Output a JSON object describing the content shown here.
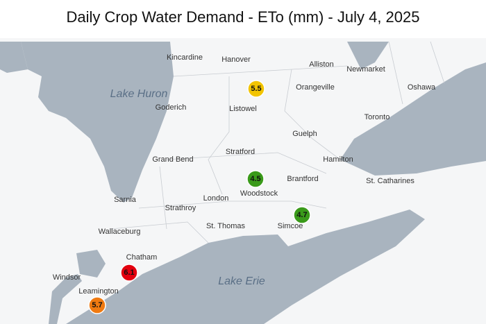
{
  "title": "Daily Crop Water Demand - ETo (mm) - July 4, 2025",
  "lakes": [
    "Lake Huron",
    "Lake Erie"
  ],
  "cities": [
    "Kincardine",
    "Hanover",
    "Alliston",
    "Newmarket",
    "Orangeville",
    "Oshawa",
    "Goderich",
    "Listowel",
    "Toronto",
    "Guelph",
    "Stratford",
    "Grand Bend",
    "Hamilton",
    "Brantford",
    "St. Catharines",
    "Woodstock",
    "Sarnia",
    "London",
    "Strathroy",
    "Simcoe",
    "Wallaceburg",
    "St. Thomas",
    "Chatham",
    "Windsor",
    "Leamington"
  ],
  "stations": [
    {
      "value": 5.5,
      "color": "#f2c400"
    },
    {
      "value": 4.5,
      "color": "#3a9a1a"
    },
    {
      "value": 4.7,
      "color": "#3a9a1a"
    },
    {
      "value": 6.1,
      "color": "#e3000f"
    },
    {
      "value": 5.7,
      "color": "#f07a10"
    }
  ]
}
